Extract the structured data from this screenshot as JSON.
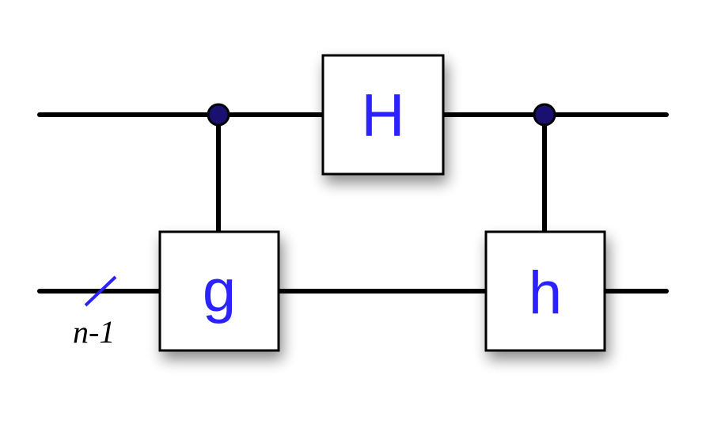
{
  "circuit": {
    "gates": [
      {
        "label": "g",
        "type": "controlled",
        "control_wire": 0,
        "target_wire": 1
      },
      {
        "label": "H",
        "type": "single",
        "wire": 0
      },
      {
        "label": "h",
        "type": "controlled",
        "control_wire": 0,
        "target_wire": 1
      }
    ],
    "wires": [
      {
        "register_label": ""
      },
      {
        "register_label": "n-1"
      }
    ]
  },
  "colors": {
    "wire": "#000000",
    "gate_fill": "#ffffff",
    "gate_border": "#000000",
    "gate_text": "#2b22ff",
    "control_dot": "#1a1070",
    "bus_slash": "#2b22ff",
    "register_text": "#000000"
  }
}
